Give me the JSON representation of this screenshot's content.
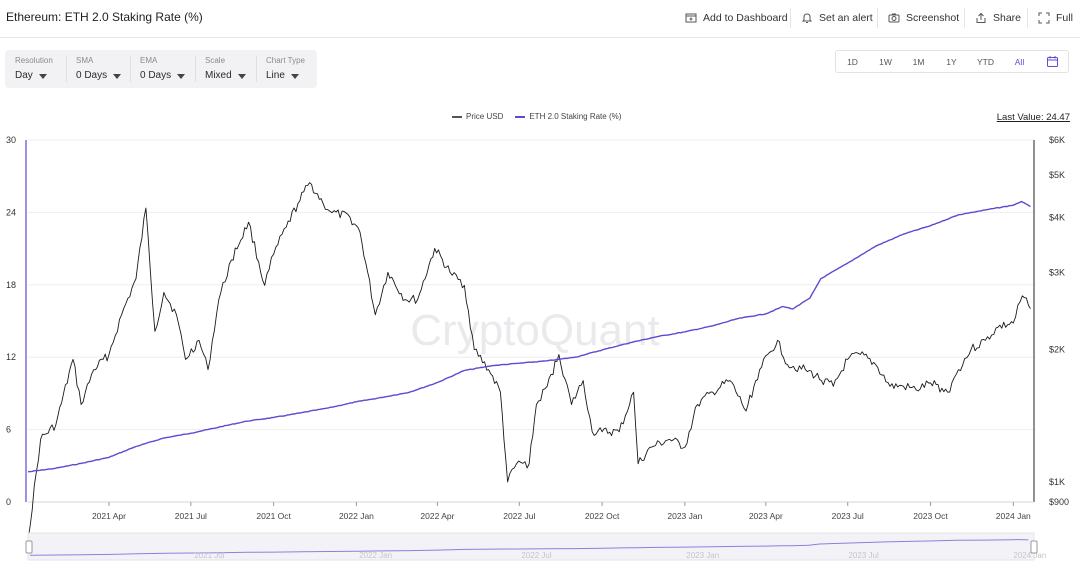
{
  "header": {
    "title": "Ethereum: ETH 2.0 Staking Rate (%)",
    "actions": {
      "dashboard": "Add to Dashboard",
      "alert": "Set an alert",
      "screenshot": "Screenshot",
      "share": "Share",
      "full": "Full"
    }
  },
  "toolbar": {
    "resolution": {
      "label": "Resolution",
      "value": "Day"
    },
    "sma": {
      "label": "SMA",
      "value": "0 Days"
    },
    "ema": {
      "label": "EMA",
      "value": "0 Days"
    },
    "scale": {
      "label": "Scale",
      "value": "Mixed"
    },
    "chart_type": {
      "label": "Chart Type",
      "value": "Line"
    }
  },
  "range": {
    "buttons": [
      "1D",
      "1W",
      "1M",
      "1Y",
      "YTD",
      "All"
    ],
    "active": "All"
  },
  "legend": {
    "price": "Price USD",
    "staking": "ETH 2.0 Staking Rate (%)"
  },
  "last_value": "Last Value: 24.47",
  "watermark": "CryptoQuant",
  "colors": {
    "accent": "#5b4fd6",
    "staking_line": "#5a4bd1",
    "price_line": "#1a1a1a"
  },
  "chart_data": {
    "type": "line",
    "x_ticks": [
      "2021 Apr",
      "2021 Jul",
      "2021 Oct",
      "2022 Jan",
      "2022 Apr",
      "2022 Jul",
      "2022 Oct",
      "2023 Jan",
      "2023 Apr",
      "2023 Jul",
      "2023 Oct",
      "2024 Jan"
    ],
    "y_left": {
      "ticks": [
        "0",
        "6",
        "12",
        "18",
        "24",
        "30"
      ],
      "range": [
        0,
        30
      ]
    },
    "y_right": {
      "ticks": [
        "$900",
        "$1K",
        "$2K",
        "$3K",
        "$4K",
        "$5K",
        "$6K"
      ],
      "range": [
        900,
        6000
      ],
      "scale": "log"
    },
    "navigator_labels": [
      "2021 Jul",
      "2022 Jan",
      "2022 Jul",
      "2023 Jan",
      "2023 Jul",
      "2024 Jan"
    ],
    "series": [
      {
        "name": "ETH 2.0 Staking Rate (%)",
        "axis": "left",
        "points": [
          [
            "2021-01-01",
            2.5
          ],
          [
            "2021-02-01",
            2.8
          ],
          [
            "2021-03-01",
            3.2
          ],
          [
            "2021-04-01",
            3.7
          ],
          [
            "2021-05-01",
            4.6
          ],
          [
            "2021-06-01",
            5.3
          ],
          [
            "2021-07-01",
            5.7
          ],
          [
            "2021-08-01",
            6.2
          ],
          [
            "2021-09-01",
            6.7
          ],
          [
            "2021-10-01",
            7.0
          ],
          [
            "2021-11-01",
            7.4
          ],
          [
            "2021-12-01",
            7.8
          ],
          [
            "2022-01-01",
            8.3
          ],
          [
            "2022-02-01",
            8.7
          ],
          [
            "2022-03-01",
            9.1
          ],
          [
            "2022-04-01",
            9.9
          ],
          [
            "2022-05-01",
            10.9
          ],
          [
            "2022-06-01",
            11.3
          ],
          [
            "2022-07-01",
            11.5
          ],
          [
            "2022-08-01",
            11.7
          ],
          [
            "2022-09-01",
            12.0
          ],
          [
            "2022-10-01",
            12.6
          ],
          [
            "2022-11-01",
            13.2
          ],
          [
            "2022-12-01",
            13.7
          ],
          [
            "2023-01-01",
            14.1
          ],
          [
            "2023-02-01",
            14.6
          ],
          [
            "2023-03-01",
            15.2
          ],
          [
            "2023-04-01",
            15.6
          ],
          [
            "2023-04-20",
            16.2
          ],
          [
            "2023-05-01",
            16.0
          ],
          [
            "2023-05-20",
            16.9
          ],
          [
            "2023-06-01",
            18.5
          ],
          [
            "2023-07-01",
            19.8
          ],
          [
            "2023-08-01",
            21.2
          ],
          [
            "2023-09-01",
            22.2
          ],
          [
            "2023-10-01",
            22.9
          ],
          [
            "2023-11-01",
            23.8
          ],
          [
            "2023-12-01",
            24.2
          ],
          [
            "2024-01-01",
            24.6
          ],
          [
            "2024-01-10",
            24.9
          ],
          [
            "2024-01-20",
            24.47
          ]
        ]
      },
      {
        "name": "Price USD",
        "axis": "right",
        "points": [
          [
            "2021-01-01",
            740
          ],
          [
            "2021-01-15",
            1250
          ],
          [
            "2021-02-01",
            1350
          ],
          [
            "2021-02-20",
            1900
          ],
          [
            "2021-03-01",
            1500
          ],
          [
            "2021-03-15",
            1800
          ],
          [
            "2021-04-01",
            1950
          ],
          [
            "2021-04-15",
            2400
          ],
          [
            "2021-05-01",
            2900
          ],
          [
            "2021-05-12",
            4200
          ],
          [
            "2021-05-22",
            2200
          ],
          [
            "2021-06-01",
            2700
          ],
          [
            "2021-06-15",
            2400
          ],
          [
            "2021-06-25",
            1900
          ],
          [
            "2021-07-10",
            2100
          ],
          [
            "2021-07-20",
            1800
          ],
          [
            "2021-08-01",
            2600
          ],
          [
            "2021-08-15",
            3200
          ],
          [
            "2021-09-03",
            3900
          ],
          [
            "2021-09-21",
            2800
          ],
          [
            "2021-10-01",
            3300
          ],
          [
            "2021-10-15",
            3800
          ],
          [
            "2021-10-28",
            4300
          ],
          [
            "2021-11-10",
            4800
          ],
          [
            "2021-11-25",
            4300
          ],
          [
            "2021-12-05",
            4100
          ],
          [
            "2021-12-25",
            4000
          ],
          [
            "2022-01-05",
            3700
          ],
          [
            "2022-01-22",
            2400
          ],
          [
            "2022-02-05",
            3000
          ],
          [
            "2022-02-24",
            2600
          ],
          [
            "2022-03-10",
            2600
          ],
          [
            "2022-03-29",
            3400
          ],
          [
            "2022-04-15",
            3000
          ],
          [
            "2022-05-01",
            2800
          ],
          [
            "2022-05-12",
            2000
          ],
          [
            "2022-05-28",
            1800
          ],
          [
            "2022-06-10",
            1600
          ],
          [
            "2022-06-18",
            1000
          ],
          [
            "2022-06-28",
            1100
          ],
          [
            "2022-07-12",
            1100
          ],
          [
            "2022-07-20",
            1500
          ],
          [
            "2022-08-01",
            1650
          ],
          [
            "2022-08-14",
            1950
          ],
          [
            "2022-08-28",
            1500
          ],
          [
            "2022-09-10",
            1700
          ],
          [
            "2022-09-20",
            1300
          ],
          [
            "2022-10-01",
            1300
          ],
          [
            "2022-10-20",
            1300
          ],
          [
            "2022-11-05",
            1600
          ],
          [
            "2022-11-10",
            1100
          ],
          [
            "2022-11-25",
            1200
          ],
          [
            "2022-12-15",
            1250
          ],
          [
            "2023-01-01",
            1200
          ],
          [
            "2023-01-15",
            1500
          ],
          [
            "2023-02-01",
            1600
          ],
          [
            "2023-02-20",
            1700
          ],
          [
            "2023-03-10",
            1450
          ],
          [
            "2023-03-25",
            1800
          ],
          [
            "2023-04-14",
            2100
          ],
          [
            "2023-04-25",
            1850
          ],
          [
            "2023-05-15",
            1800
          ],
          [
            "2023-06-15",
            1650
          ],
          [
            "2023-07-01",
            1900
          ],
          [
            "2023-07-15",
            1950
          ],
          [
            "2023-08-01",
            1850
          ],
          [
            "2023-08-17",
            1650
          ],
          [
            "2023-09-01",
            1650
          ],
          [
            "2023-09-15",
            1620
          ],
          [
            "2023-10-01",
            1680
          ],
          [
            "2023-10-20",
            1600
          ],
          [
            "2023-11-01",
            1800
          ],
          [
            "2023-11-15",
            2000
          ],
          [
            "2023-12-01",
            2100
          ],
          [
            "2023-12-15",
            2250
          ],
          [
            "2024-01-01",
            2300
          ],
          [
            "2024-01-11",
            2650
          ],
          [
            "2024-01-20",
            2480
          ]
        ]
      }
    ]
  }
}
